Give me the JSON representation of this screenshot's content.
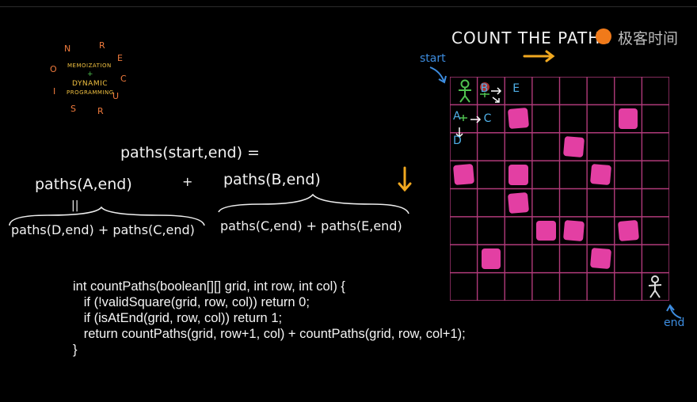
{
  "title": "COUNT THE PATHS",
  "watermark": {
    "text": "极客时间"
  },
  "logo": {
    "ring_letters": [
      "N",
      "R",
      "E",
      "C",
      "U",
      "R",
      "S",
      "I",
      "O"
    ],
    "center_lines": [
      "MEMOIZATION",
      "+",
      "DYNAMIC",
      "PROGRAMMING"
    ]
  },
  "labels": {
    "start": "start",
    "end": "end"
  },
  "equations": {
    "top": "paths(start,end) =",
    "left": "paths(A,end)",
    "plus": "+",
    "right": "paths(B,end)",
    "equals": "||",
    "left_expansion": "paths(D,end) + paths(C,end)",
    "right_expansion": "paths(C,end) + paths(E,end)"
  },
  "grid": {
    "rows": 8,
    "cols": 8,
    "line_color": "#b03a7a",
    "blocked_color": "#e33fa3",
    "blocked": [
      [
        1,
        2
      ],
      [
        1,
        6
      ],
      [
        2,
        4
      ],
      [
        3,
        0
      ],
      [
        3,
        2
      ],
      [
        3,
        5
      ],
      [
        4,
        2
      ],
      [
        5,
        3
      ],
      [
        5,
        4
      ],
      [
        5,
        6
      ],
      [
        6,
        1
      ],
      [
        6,
        5
      ]
    ],
    "cell_labels": [
      {
        "text": "B",
        "row": 0,
        "col": 1
      },
      {
        "text": "E",
        "row": 0,
        "col": 2
      },
      {
        "text": "A",
        "row": 1,
        "col": 0
      },
      {
        "text": "C",
        "row": 1,
        "col": 1
      },
      {
        "text": "D",
        "row": 2,
        "col": 0
      }
    ]
  },
  "code": [
    "int countPaths(boolean[][] grid, int row, int col) {",
    "   if (!validSquare(grid, row, col)) return 0;",
    "   if (isAtEnd(grid, row, col)) return 1;",
    "   return countPaths(grid, row+1, col) + countPaths(grid, row, col+1);",
    "}"
  ],
  "colors": {
    "arrow": "#f0a820",
    "accent": "#3d8de0",
    "stick_start": "#4fc24f"
  }
}
